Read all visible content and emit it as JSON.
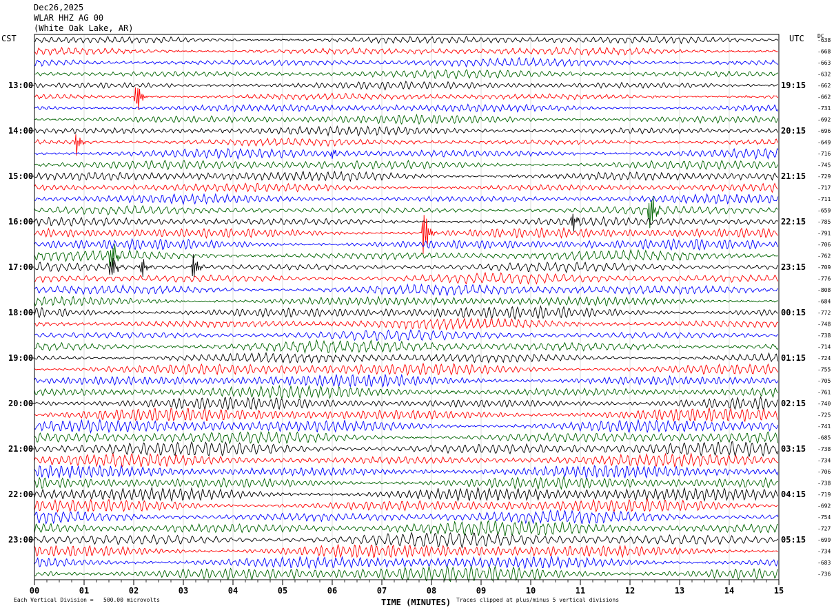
{
  "header": {
    "date": "Dec26,2025",
    "station": "WLAR HHZ AG 00",
    "location": "(White Oak Lake, AR)"
  },
  "left_zone": "CST",
  "right_zone": "UTC",
  "dc_label": "DC",
  "footer": {
    "scale_note": "Each Vertical Division =   500.00 microvolts",
    "clip_note": "Traces clipped at plus/minus 5 vertical divisions"
  },
  "colors": [
    "#000000",
    "#ff0000",
    "#0000ff",
    "#006400"
  ],
  "chart_data": {
    "type": "line",
    "title": "",
    "xlabel": "TIME (MINUTES)",
    "xlim": [
      0,
      15
    ],
    "x_ticks": [
      "00",
      "01",
      "02",
      "03",
      "04",
      "05",
      "06",
      "07",
      "08",
      "09",
      "10",
      "11",
      "12",
      "13",
      "14",
      "15"
    ],
    "left_hour_labels": [
      {
        "row": 4,
        "label": "13:00"
      },
      {
        "row": 8,
        "label": "14:00"
      },
      {
        "row": 12,
        "label": "15:00"
      },
      {
        "row": 16,
        "label": "16:00"
      },
      {
        "row": 20,
        "label": "17:00"
      },
      {
        "row": 24,
        "label": "18:00"
      },
      {
        "row": 28,
        "label": "19:00"
      },
      {
        "row": 32,
        "label": "20:00"
      },
      {
        "row": 36,
        "label": "21:00"
      },
      {
        "row": 40,
        "label": "22:00"
      },
      {
        "row": 44,
        "label": "23:00"
      }
    ],
    "right_hour_labels": [
      {
        "row": 4,
        "label": "19:15"
      },
      {
        "row": 8,
        "label": "20:15"
      },
      {
        "row": 12,
        "label": "21:15"
      },
      {
        "row": 16,
        "label": "22:15"
      },
      {
        "row": 20,
        "label": "23:15"
      },
      {
        "row": 24,
        "label": "00:15"
      },
      {
        "row": 28,
        "label": "01:15"
      },
      {
        "row": 32,
        "label": "02:15"
      },
      {
        "row": 36,
        "label": "03:15"
      },
      {
        "row": 40,
        "label": "04:15"
      },
      {
        "row": 44,
        "label": "05:15"
      }
    ],
    "dc_offsets": [
      "-638",
      "-668",
      "-663",
      "-632",
      "-662",
      "-662",
      "-731",
      "-692",
      "-696",
      "-649",
      "-716",
      "-745",
      "-729",
      "-717",
      "-711",
      "-659",
      "-785",
      "-791",
      "-706",
      "-762",
      "-709",
      "-776",
      "-808",
      "-684",
      "-772",
      "-748",
      "-738",
      "-714",
      "-724",
      "-755",
      "-705",
      "-761",
      "-740",
      "-725",
      "-741",
      "-685",
      "-738",
      "-734",
      "-706",
      "-738",
      "-719",
      "-692",
      "-754",
      "-727",
      "-699",
      "-734",
      "-683",
      "-736"
    ],
    "events": [
      {
        "row": 5,
        "minute": 2.05,
        "amplitude": 2.2
      },
      {
        "row": 9,
        "minute": 0.85,
        "amplitude": 1.2
      },
      {
        "row": 10,
        "minute": 6.0,
        "amplitude": 0.6
      },
      {
        "row": 15,
        "minute": 12.4,
        "amplitude": 2.5
      },
      {
        "row": 16,
        "minute": 10.85,
        "amplitude": 1.1
      },
      {
        "row": 17,
        "minute": 7.85,
        "amplitude": 3.0
      },
      {
        "row": 19,
        "minute": 1.55,
        "amplitude": 2.0
      },
      {
        "row": 20,
        "minute": 1.55,
        "amplitude": 1.6
      },
      {
        "row": 20,
        "minute": 2.15,
        "amplitude": 1.3
      },
      {
        "row": 20,
        "minute": 3.2,
        "amplitude": 1.6
      }
    ]
  }
}
